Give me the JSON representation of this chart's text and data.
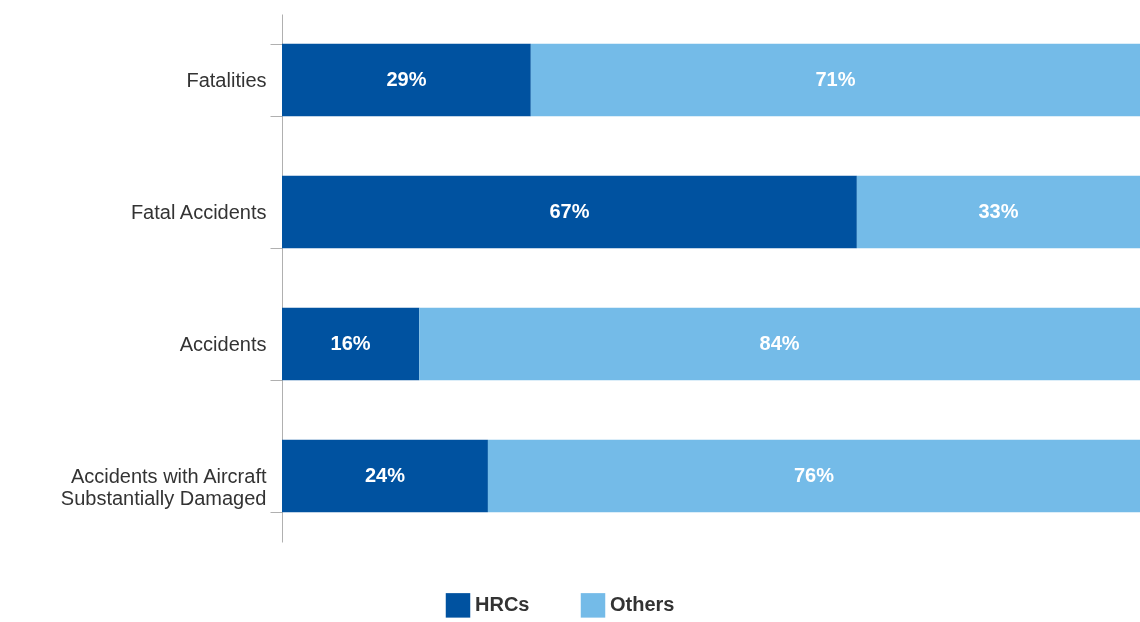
{
  "chart_data": {
    "type": "bar",
    "orientation": "horizontal",
    "stacked": true,
    "categories": [
      "Fatalities",
      "Fatal Accidents",
      "Accidents",
      "Accidents with Aircraft Substantially Damaged"
    ],
    "series": [
      {
        "name": "HRCs",
        "color": "#0052a0",
        "values": [
          29,
          67,
          16,
          24
        ],
        "value_labels": [
          "29%",
          "67%",
          "16%",
          "24%"
        ]
      },
      {
        "name": "Others",
        "color": "#74bbe8",
        "values": [
          71,
          33,
          84,
          76
        ],
        "value_labels": [
          "71%",
          "33%",
          "84%",
          "76%"
        ]
      }
    ],
    "tick_labels": "y",
    "legend": "bottom"
  }
}
